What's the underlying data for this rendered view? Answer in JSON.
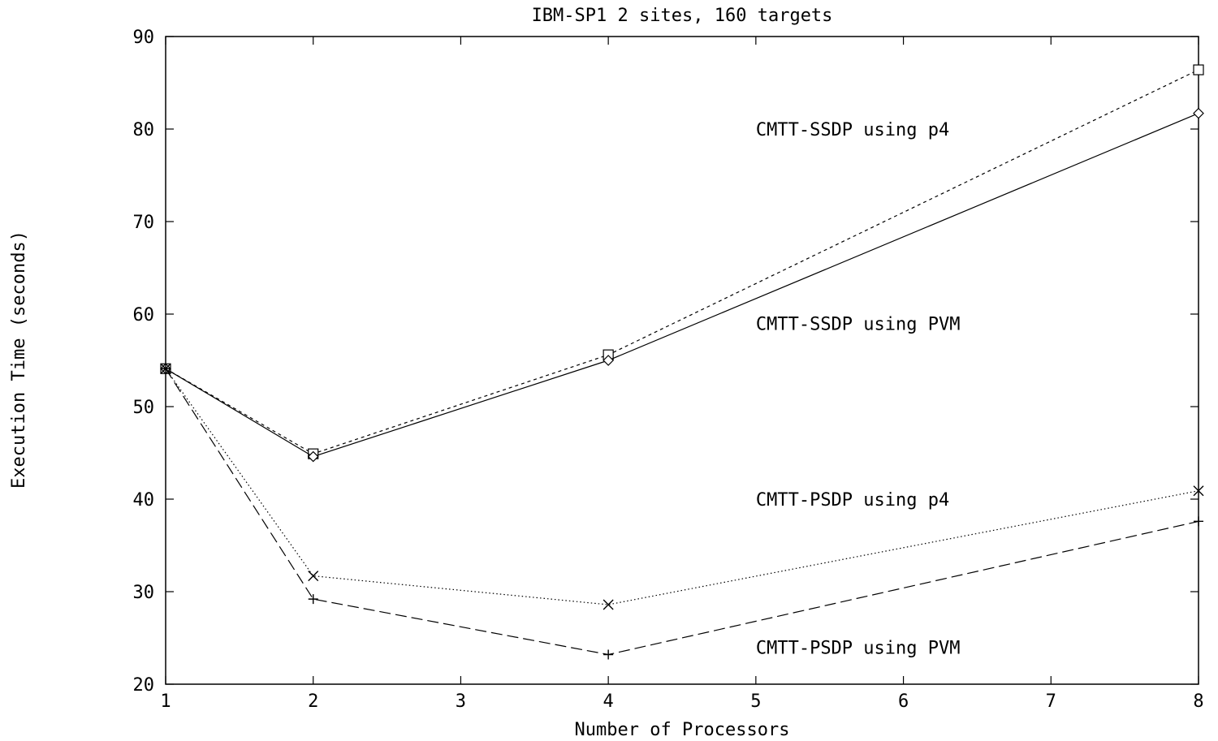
{
  "chart_data": {
    "type": "line",
    "title": "IBM-SP1 2 sites, 160 targets",
    "xlabel": "Number of Processors",
    "ylabel": "Execution Time (seconds)",
    "xlim": [
      1,
      8
    ],
    "ylim": [
      20,
      90
    ],
    "xtick_labels": [
      "1",
      "2",
      "3",
      "4",
      "5",
      "6",
      "7",
      "8"
    ],
    "ytick_values": [
      20,
      30,
      40,
      50,
      60,
      70,
      80,
      90
    ],
    "x_is_categorical": true,
    "grid": false,
    "series": [
      {
        "name": "CMTT-SSDP using p4",
        "marker": "square",
        "dash": "dashed-fine",
        "points": [
          {
            "x": "1",
            "y": 54.1
          },
          {
            "x": "2",
            "y": 44.9
          },
          {
            "x": "4",
            "y": 55.6
          },
          {
            "x": "8",
            "y": 86.4
          }
        ]
      },
      {
        "name": "CMTT-SSDP using PVM",
        "marker": "diamond",
        "dash": "solid",
        "points": [
          {
            "x": "1",
            "y": 54.1
          },
          {
            "x": "2",
            "y": 44.6
          },
          {
            "x": "4",
            "y": 55.0
          },
          {
            "x": "8",
            "y": 81.7
          }
        ]
      },
      {
        "name": "CMTT-PSDP using p4",
        "marker": "cross",
        "dash": "dotted",
        "points": [
          {
            "x": "1",
            "y": 54.1
          },
          {
            "x": "2",
            "y": 31.7
          },
          {
            "x": "4",
            "y": 28.6
          },
          {
            "x": "8",
            "y": 40.9
          }
        ]
      },
      {
        "name": "CMTT-PSDP using PVM",
        "marker": "plus",
        "dash": "long-dash",
        "points": [
          {
            "x": "1",
            "y": 54.1
          },
          {
            "x": "2",
            "y": 29.2
          },
          {
            "x": "4",
            "y": 23.2
          },
          {
            "x": "8",
            "y": 37.6
          }
        ]
      }
    ],
    "annotations": [
      {
        "text": "CMTT-SSDP using p4",
        "at_x": "5",
        "at_y": 80
      },
      {
        "text": "CMTT-SSDP using PVM",
        "at_x": "5",
        "at_y": 59
      },
      {
        "text": "CMTT-PSDP using p4",
        "at_x": "5",
        "at_y": 40
      },
      {
        "text": "CMTT-PSDP using PVM",
        "at_x": "5",
        "at_y": 24
      }
    ]
  }
}
